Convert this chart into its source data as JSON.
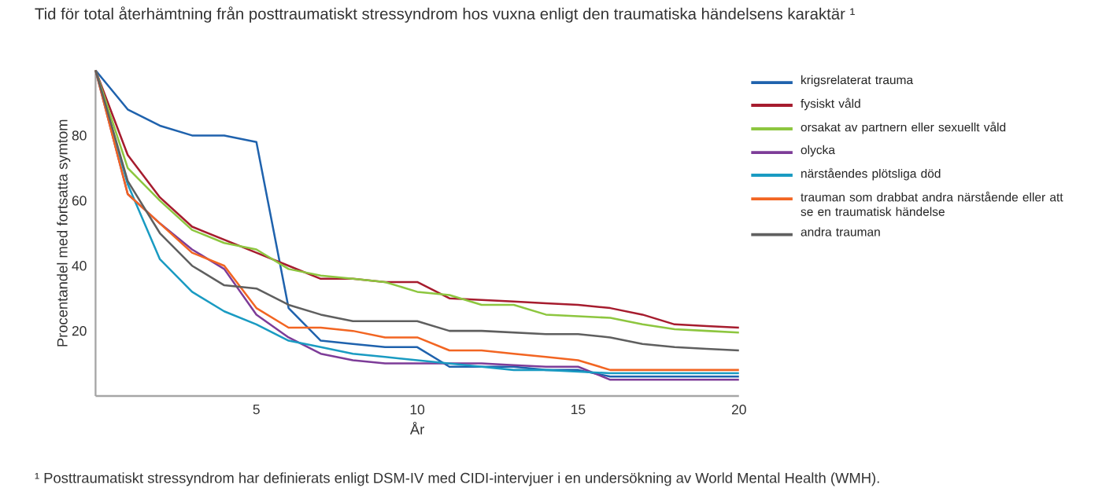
{
  "chart_data": {
    "type": "line",
    "title": "Tid för total återhämtning från posttraumatiskt stressyndrom hos vuxna enligt den traumatiska händelsens karaktär ¹",
    "xlabel": "År",
    "ylabel": "Procentandel med fortsatta symtom",
    "annotations": [
      "¹ Posttraumatiskt stressyndrom har definierats enligt DSM-IV med CIDI-intervjuer i en undersökning av World Mental Health (WMH)."
    ],
    "x": [
      0,
      1,
      2,
      3,
      4,
      5,
      6,
      7,
      8,
      9,
      10,
      11,
      12,
      13,
      14,
      15,
      16,
      17,
      18,
      19,
      20
    ],
    "xlim": [
      0,
      20
    ],
    "ylim": [
      0,
      100
    ],
    "xticks": [
      5,
      10,
      15,
      20
    ],
    "yticks": [
      20,
      40,
      60,
      80
    ],
    "grid": false,
    "legend": "right",
    "marker": "none",
    "line_style": "solid",
    "series": [
      {
        "name": "krigsrelaterat trauma",
        "color": "#1f62ad",
        "values": [
          100,
          88,
          83,
          80,
          80,
          78,
          27,
          17,
          16,
          15,
          15,
          9,
          9,
          9,
          8,
          8,
          6,
          6,
          6,
          6,
          6
        ]
      },
      {
        "name": "fysiskt våld",
        "color": "#a61c2e",
        "values": [
          100,
          74,
          61,
          52,
          48,
          44,
          40,
          36,
          36,
          35,
          35,
          30,
          29.5,
          29,
          28.5,
          28,
          27,
          25,
          22,
          21.5,
          21
        ]
      },
      {
        "name": "orsakat av partnern eller sexuellt våld",
        "color": "#8dc63f",
        "values": [
          100,
          70,
          60,
          51,
          47,
          45,
          39,
          37,
          36,
          35,
          32,
          31,
          28,
          28,
          25,
          24.5,
          24,
          22,
          20.5,
          20,
          19.5
        ]
      },
      {
        "name": "olycka",
        "color": "#7d3c98",
        "values": [
          100,
          62,
          53,
          45,
          39,
          25,
          18,
          13,
          11,
          10,
          10,
          10,
          10,
          9.5,
          9,
          9,
          5,
          5,
          5,
          5,
          5
        ]
      },
      {
        "name": "närståendes plötsliga död",
        "color": "#1a9bc2",
        "values": [
          100,
          65,
          42,
          32,
          26,
          22,
          17,
          15,
          13,
          12,
          11,
          10,
          9,
          8,
          8,
          7.5,
          7,
          7,
          7,
          7,
          7
        ]
      },
      {
        "name": "trauman som drabbat andra närstående eller att se en traumatisk händelse",
        "color": "#f26522",
        "values": [
          100,
          62,
          53,
          44,
          40,
          27,
          21,
          21,
          20,
          18,
          18,
          14,
          14,
          13,
          12,
          11,
          8,
          8,
          8,
          8,
          8
        ]
      },
      {
        "name": "andra trauman",
        "color": "#5f5f5f",
        "values": [
          100,
          66,
          50,
          40,
          34,
          33,
          28,
          25,
          23,
          23,
          23,
          20,
          20,
          19.5,
          19,
          19,
          18,
          16,
          15,
          14.5,
          14
        ]
      }
    ]
  }
}
